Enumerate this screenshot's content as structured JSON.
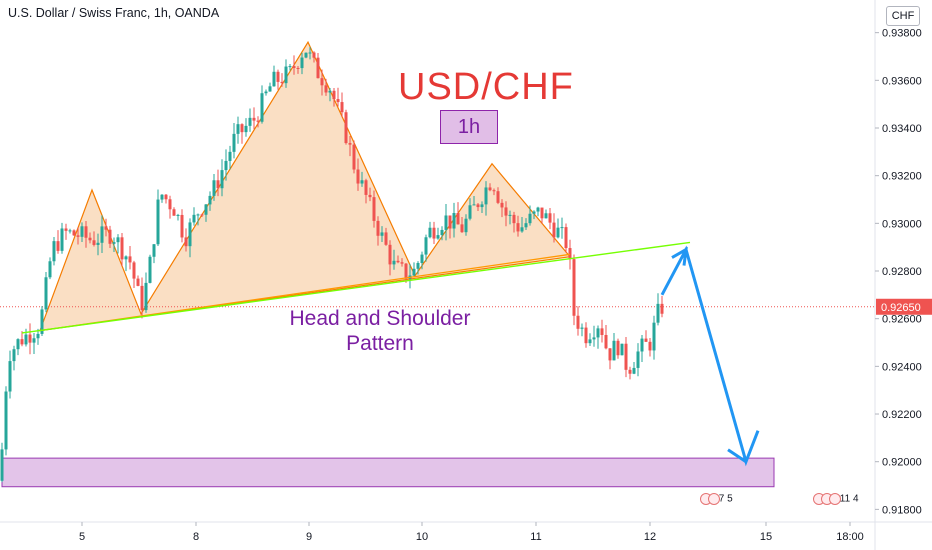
{
  "header": {
    "symbol_title": "U.S. Dollar / Swiss Franc, 1h, OANDA",
    "currency": "CHF"
  },
  "annotations": {
    "pair": "USD/CHF",
    "timeframe": "1h",
    "pattern_line1": "Head and Shoulder",
    "pattern_line2": "Pattern"
  },
  "events": {
    "group1": "7 5",
    "group2": "11 4"
  },
  "colors": {
    "up": "#26a69a",
    "down": "#ef5350",
    "pattern_fill": "#f8d4b0",
    "pattern_line": "#f57c00",
    "neckline": "#76ff03",
    "neckline2": "#ff9800",
    "arrow": "#2196f3",
    "zone_fill": "#e1bee7",
    "zone_border": "#8e24aa",
    "price_line": "#ef5350"
  },
  "chart_data": {
    "type": "candlestick",
    "y_axis": {
      "ylim": [
        0.91747,
        0.93937
      ],
      "ticks": [
        "0.93800",
        "0.93600",
        "0.93400",
        "0.93200",
        "0.93000",
        "0.92800",
        "0.92600",
        "0.92400",
        "0.92200",
        "0.92000",
        "0.91800"
      ]
    },
    "x_axis": {
      "ticks": [
        "5",
        "8",
        "9",
        "10",
        "11",
        "12",
        "15",
        "18:00"
      ]
    },
    "current_price": 0.9265,
    "price_path": [
      [
        0,
        0.9192
      ],
      [
        8,
        0.9245
      ],
      [
        20,
        0.9251
      ],
      [
        40,
        0.9257
      ],
      [
        52,
        0.9289
      ],
      [
        65,
        0.9296
      ],
      [
        80,
        0.9295
      ],
      [
        92,
        0.9293
      ],
      [
        112,
        0.9296
      ],
      [
        130,
        0.9284
      ],
      [
        141,
        0.9265
      ],
      [
        148,
        0.9277
      ],
      [
        160,
        0.9313
      ],
      [
        175,
        0.9306
      ],
      [
        185,
        0.9294
      ],
      [
        198,
        0.9305
      ],
      [
        215,
        0.9315
      ],
      [
        235,
        0.9336
      ],
      [
        255,
        0.9344
      ],
      [
        272,
        0.9359
      ],
      [
        290,
        0.9363
      ],
      [
        305,
        0.9374
      ],
      [
        315,
        0.9365
      ],
      [
        330,
        0.9357
      ],
      [
        345,
        0.9339
      ],
      [
        355,
        0.9323
      ],
      [
        368,
        0.9309
      ],
      [
        380,
        0.9296
      ],
      [
        395,
        0.9281
      ],
      [
        405,
        0.9279
      ],
      [
        415,
        0.928
      ],
      [
        428,
        0.9296
      ],
      [
        445,
        0.9302
      ],
      [
        462,
        0.9298
      ],
      [
        475,
        0.9307
      ],
      [
        492,
        0.9319
      ],
      [
        505,
        0.9304
      ],
      [
        520,
        0.9298
      ],
      [
        540,
        0.9305
      ],
      [
        555,
        0.9298
      ],
      [
        568,
        0.9291
      ],
      [
        574,
        0.9262
      ],
      [
        585,
        0.9253
      ],
      [
        600,
        0.9259
      ],
      [
        608,
        0.9245
      ],
      [
        618,
        0.9249
      ],
      [
        628,
        0.9239
      ],
      [
        640,
        0.9247
      ],
      [
        650,
        0.925
      ],
      [
        660,
        0.9265
      ]
    ],
    "shoulder_head": [
      [
        40,
        0.9255
      ],
      [
        92,
        0.9314
      ],
      [
        141,
        0.9262
      ],
      [
        308,
        0.9376
      ],
      [
        415,
        0.9278
      ],
      [
        492,
        0.9325
      ],
      [
        570,
        0.9286
      ]
    ],
    "neckline": [
      [
        22,
        0.9254
      ],
      [
        690,
        0.9292
      ]
    ],
    "neckline_orange": [
      [
        40,
        0.9255
      ],
      [
        570,
        0.9287
      ]
    ],
    "forecast_arrow": [
      [
        662,
        0.927
      ],
      [
        686,
        0.9289
      ],
      [
        746,
        0.92
      ],
      [
        758,
        0.9213
      ]
    ],
    "target_zone": [
      0.91895,
      0.92015
    ],
    "candles_span_x": [
      0,
      665
    ]
  }
}
